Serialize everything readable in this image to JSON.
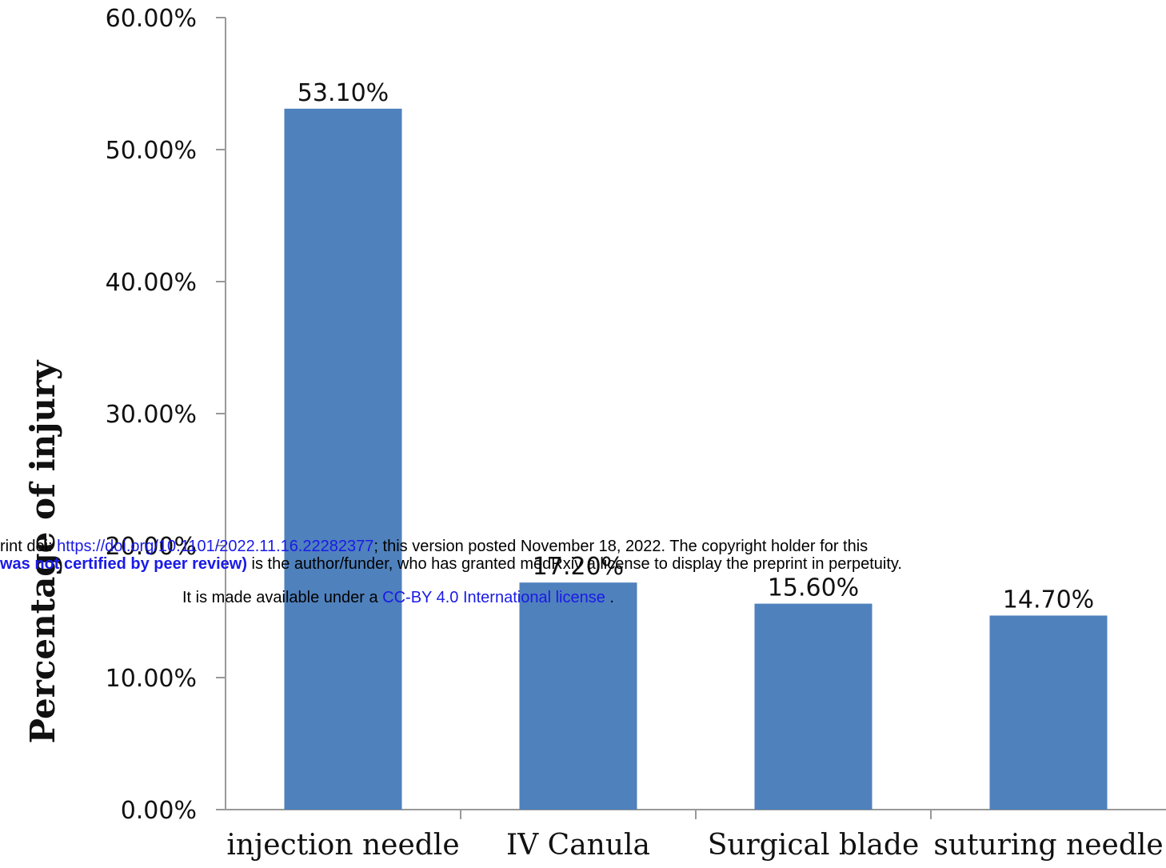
{
  "chart_data": {
    "type": "bar",
    "ylabel": "Percentage of injury",
    "xlabel": "",
    "ylim": [
      0,
      60
    ],
    "yticks": [
      "0.00%",
      "10.00%",
      "20.00%",
      "30.00%",
      "40.00%",
      "50.00%",
      "60.00%"
    ],
    "categories": [
      "injection needle",
      "IV Canula",
      "Surgical blade",
      "suturing needle"
    ],
    "values": [
      53.1,
      17.2,
      15.6,
      14.7
    ],
    "data_labels": [
      "53.10%",
      "17.20%",
      "15.60%",
      "14.70%"
    ],
    "bar_color": "#4f81bd",
    "grid": false,
    "legend": "none"
  },
  "watermark": {
    "line1_prefix": "rint doi: ",
    "line1_link": "https://doi.org/10.1101/2022.11.16.22282377",
    "line1_suffix": "; this version posted November 18, 2022. The copyright holder for this",
    "line2_bold": "was not certified by peer review)",
    "line2_rest": " is the author/funder, who has granted medRxiv a license to display the preprint in perpetuity.",
    "line3_prefix": "It is made available under a ",
    "line3_link": "CC-BY 4.0 International license",
    "line3_suffix": " ."
  }
}
